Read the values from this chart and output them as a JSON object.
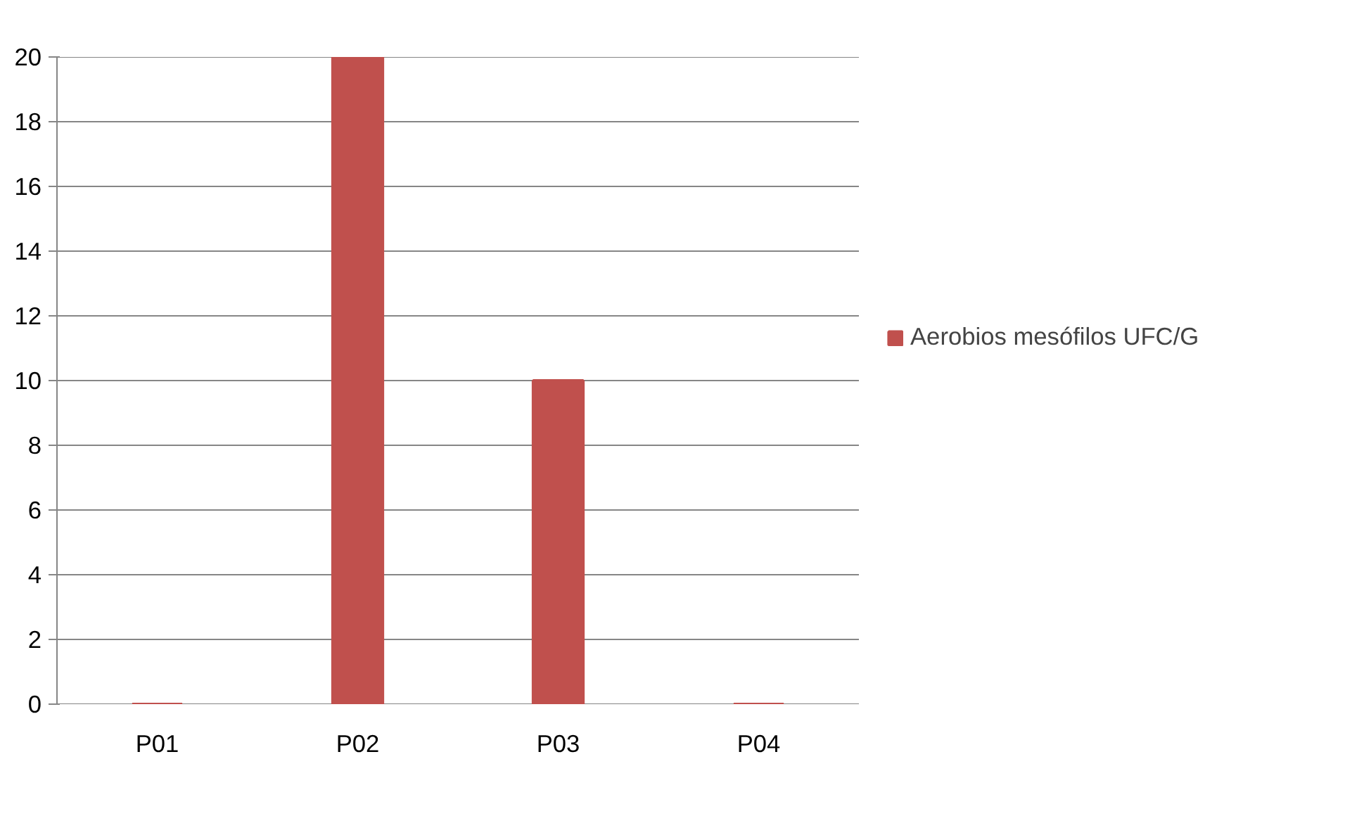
{
  "chart_data": {
    "type": "bar",
    "categories": [
      "P01",
      "P02",
      "P03",
      "P04"
    ],
    "series": [
      {
        "name": "Aerobios mesófilos UFC/G",
        "color": "#c0504d",
        "values": [
          0,
          20,
          10,
          0
        ]
      }
    ],
    "ylim": [
      0,
      20
    ],
    "yticks": [
      0,
      2,
      4,
      6,
      8,
      10,
      12,
      14,
      16,
      18,
      20
    ],
    "grid": "y",
    "legend": "right"
  }
}
